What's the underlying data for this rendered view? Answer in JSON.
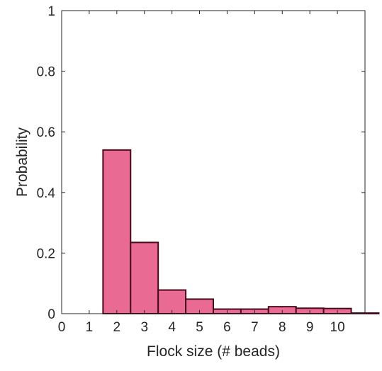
{
  "chart_data": {
    "type": "bar",
    "title": "",
    "xlabel": "Flock size (# beads)",
    "ylabel": "Probability",
    "xlim": [
      0,
      11
    ],
    "ylim": [
      0,
      1
    ],
    "xticks": [
      0,
      1,
      2,
      3,
      4,
      5,
      6,
      7,
      8,
      9,
      10
    ],
    "xtick_labels": [
      "0",
      "1",
      "2",
      "3",
      "4",
      "5",
      "6",
      "7",
      "8",
      "9",
      "10"
    ],
    "yticks": [
      0,
      0.2,
      0.4,
      0.6,
      0.8,
      1
    ],
    "ytick_labels": [
      "0",
      "0.2",
      "0.4",
      "0.6",
      "0.8",
      "1"
    ],
    "bin_width": 1,
    "categories": [
      2,
      3,
      4,
      5,
      6,
      7,
      8,
      9,
      10,
      11
    ],
    "values": [
      0.54,
      0.235,
      0.078,
      0.048,
      0.015,
      0.015,
      0.023,
      0.018,
      0.017,
      0.002
    ],
    "grid": false,
    "legend": "none",
    "colors": {
      "bar_fill": "#e96b93",
      "bar_edge": "#4a0a1e",
      "axis": "#262626"
    }
  }
}
